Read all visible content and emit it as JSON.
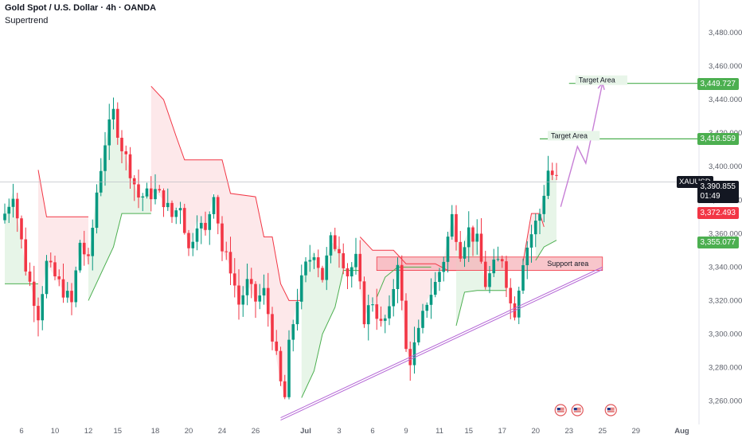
{
  "header": {
    "title": "Gold Spot / U.S. Dollar · 4h · OANDA",
    "indicator": "Supertrend"
  },
  "colors": {
    "up": "#089981",
    "down": "#f23645",
    "ink": "#131722",
    "supertrend_up": "#4caf50",
    "supertrend_down": "#f23645",
    "fill_up": "#e7f5e8",
    "fill_down": "#fde8ea",
    "trendline": "#b568d6",
    "target_line": "#4caf50",
    "projection": "#c77fd6",
    "support_fill": "#f6b3b9"
  },
  "price_labels": {
    "symbol": "XAUUSD",
    "last_price": "3,390.855",
    "countdown": "01:49",
    "supertrend_down_value": "3,372.493",
    "supertrend_up_value": "3,355.077",
    "target1_value": "3,416.559",
    "target2_value": "3,449.727"
  },
  "annotations": {
    "target1_label": "Target Area",
    "target2_label": "Target Area",
    "support_label": "Support area"
  },
  "event_icons": [
    "us-flag-icon",
    "us-flag-icon",
    "us-flag-icon"
  ],
  "chart_data": {
    "type": "candlestick",
    "title": "Gold Spot / U.S. Dollar · 4h · OANDA",
    "y_ticks": [
      "3,260.000",
      "3,280.000",
      "3,300.000",
      "3,320.000",
      "3,340.000",
      "3,360.000",
      "3,380.000",
      "3,400.000",
      "3,420.000",
      "3,440.000",
      "3,460.000",
      "3,480.000"
    ],
    "y_tick_values": [
      3260,
      3280,
      3300,
      3320,
      3340,
      3360,
      3380,
      3400,
      3420,
      3440,
      3460,
      3480
    ],
    "ylim": [
      3246,
      3490
    ],
    "x_ticks": [
      "6",
      "10",
      "12",
      "15",
      "18",
      "20",
      "24",
      "26",
      "Jul",
      "3",
      "6",
      "9",
      "11",
      "15",
      "17",
      "20",
      "23",
      "25",
      "29",
      "Aug"
    ],
    "x_tick_index": [
      4,
      12,
      20,
      27,
      36,
      44,
      52,
      60,
      72,
      80,
      88,
      96,
      104,
      111,
      119,
      127,
      135,
      143,
      151,
      162
    ],
    "bars_total": 164,
    "candle_anchors": [
      [
        0,
        3372
      ],
      [
        2,
        3385
      ],
      [
        5,
        3340
      ],
      [
        8,
        3312
      ],
      [
        10,
        3342
      ],
      [
        13,
        3330
      ],
      [
        16,
        3318
      ],
      [
        18,
        3355
      ],
      [
        20,
        3342
      ],
      [
        22,
        3385
      ],
      [
        24,
        3415
      ],
      [
        26,
        3432
      ],
      [
        28,
        3412
      ],
      [
        30,
        3398
      ],
      [
        32,
        3382
      ],
      [
        34,
        3383
      ],
      [
        36,
        3385
      ],
      [
        38,
        3380
      ],
      [
        40,
        3370
      ],
      [
        42,
        3378
      ],
      [
        44,
        3350
      ],
      [
        46,
        3368
      ],
      [
        48,
        3360
      ],
      [
        50,
        3386
      ],
      [
        52,
        3350
      ],
      [
        54,
        3340
      ],
      [
        56,
        3318
      ],
      [
        58,
        3330
      ],
      [
        60,
        3320
      ],
      [
        62,
        3325
      ],
      [
        64,
        3300
      ],
      [
        66,
        3270
      ],
      [
        67,
        3262
      ],
      [
        68,
        3292
      ],
      [
        70,
        3322
      ],
      [
        72,
        3340
      ],
      [
        74,
        3350
      ],
      [
        76,
        3334
      ],
      [
        78,
        3355
      ],
      [
        80,
        3352
      ],
      [
        82,
        3336
      ],
      [
        84,
        3344
      ],
      [
        86,
        3310
      ],
      [
        88,
        3320
      ],
      [
        90,
        3305
      ],
      [
        92,
        3312
      ],
      [
        94,
        3345
      ],
      [
        96,
        3290
      ],
      [
        97,
        3285
      ],
      [
        99,
        3300
      ],
      [
        101,
        3320
      ],
      [
        103,
        3330
      ],
      [
        105,
        3345
      ],
      [
        107,
        3370
      ],
      [
        109,
        3350
      ],
      [
        111,
        3362
      ],
      [
        113,
        3355
      ],
      [
        115,
        3330
      ],
      [
        117,
        3340
      ],
      [
        119,
        3346
      ],
      [
        121,
        3318
      ],
      [
        122,
        3314
      ],
      [
        124,
        3345
      ],
      [
        126,
        3360
      ],
      [
        128,
        3372
      ],
      [
        129,
        3385
      ],
      [
        130,
        3398
      ],
      [
        131,
        3395
      ],
      [
        132,
        3392
      ]
    ],
    "supertrend_up_segments": [
      [
        [
          0,
          3330
        ],
        [
          8,
          3330
        ]
      ],
      [
        [
          20,
          3320
        ],
        [
          26,
          3352
        ],
        [
          28,
          3372
        ],
        [
          35,
          3372
        ]
      ],
      [
        [
          71,
          3262
        ],
        [
          74,
          3278
        ],
        [
          76,
          3300
        ],
        [
          79,
          3316
        ],
        [
          81,
          3338
        ],
        [
          85,
          3338
        ]
      ],
      [
        [
          89,
          3322
        ],
        [
          91,
          3334
        ],
        [
          94,
          3340
        ],
        [
          102,
          3340
        ]
      ],
      [
        [
          108,
          3305
        ],
        [
          110,
          3325
        ],
        [
          113,
          3326
        ],
        [
          120,
          3326
        ]
      ],
      [
        [
          127,
          3344
        ],
        [
          129,
          3352
        ],
        [
          132,
          3356
        ]
      ]
    ],
    "supertrend_down_segments": [
      [
        [
          8,
          3398
        ],
        [
          10,
          3370
        ],
        [
          18,
          3370
        ],
        [
          20,
          3370
        ]
      ],
      [
        [
          35,
          3448
        ],
        [
          38,
          3440
        ],
        [
          41,
          3418
        ],
        [
          43,
          3404
        ],
        [
          52,
          3404
        ],
        [
          54,
          3384
        ],
        [
          60,
          3382
        ],
        [
          62,
          3358
        ],
        [
          64,
          3358
        ],
        [
          66,
          3330
        ],
        [
          68,
          3320
        ],
        [
          71,
          3320
        ]
      ],
      [
        [
          85,
          3358
        ],
        [
          88,
          3350
        ],
        [
          93,
          3350
        ],
        [
          96,
          3342
        ],
        [
          103,
          3342
        ],
        [
          106,
          3338
        ],
        [
          108,
          3338
        ]
      ],
      [
        [
          124,
          3343
        ],
        [
          126,
          3372
        ],
        [
          128,
          3372
        ],
        [
          129,
          3364
        ]
      ]
    ],
    "trendline": [
      [
        66,
        3250
      ],
      [
        143,
        3340
      ]
    ],
    "support_zone": {
      "x0": 89,
      "x1": 143,
      "y0": 3338,
      "y1": 3346
    },
    "target_lines": [
      {
        "x0": 128,
        "x1": 164,
        "y": 3416.559
      },
      {
        "x0": 135,
        "x1": 164,
        "y": 3449.727
      }
    ],
    "projection_path": [
      [
        133,
        3376
      ],
      [
        137,
        3412
      ],
      [
        139,
        3402
      ],
      [
        143,
        3450
      ]
    ],
    "current_price_line": 3390.855,
    "event_markers_x": [
      133,
      137,
      145
    ]
  }
}
